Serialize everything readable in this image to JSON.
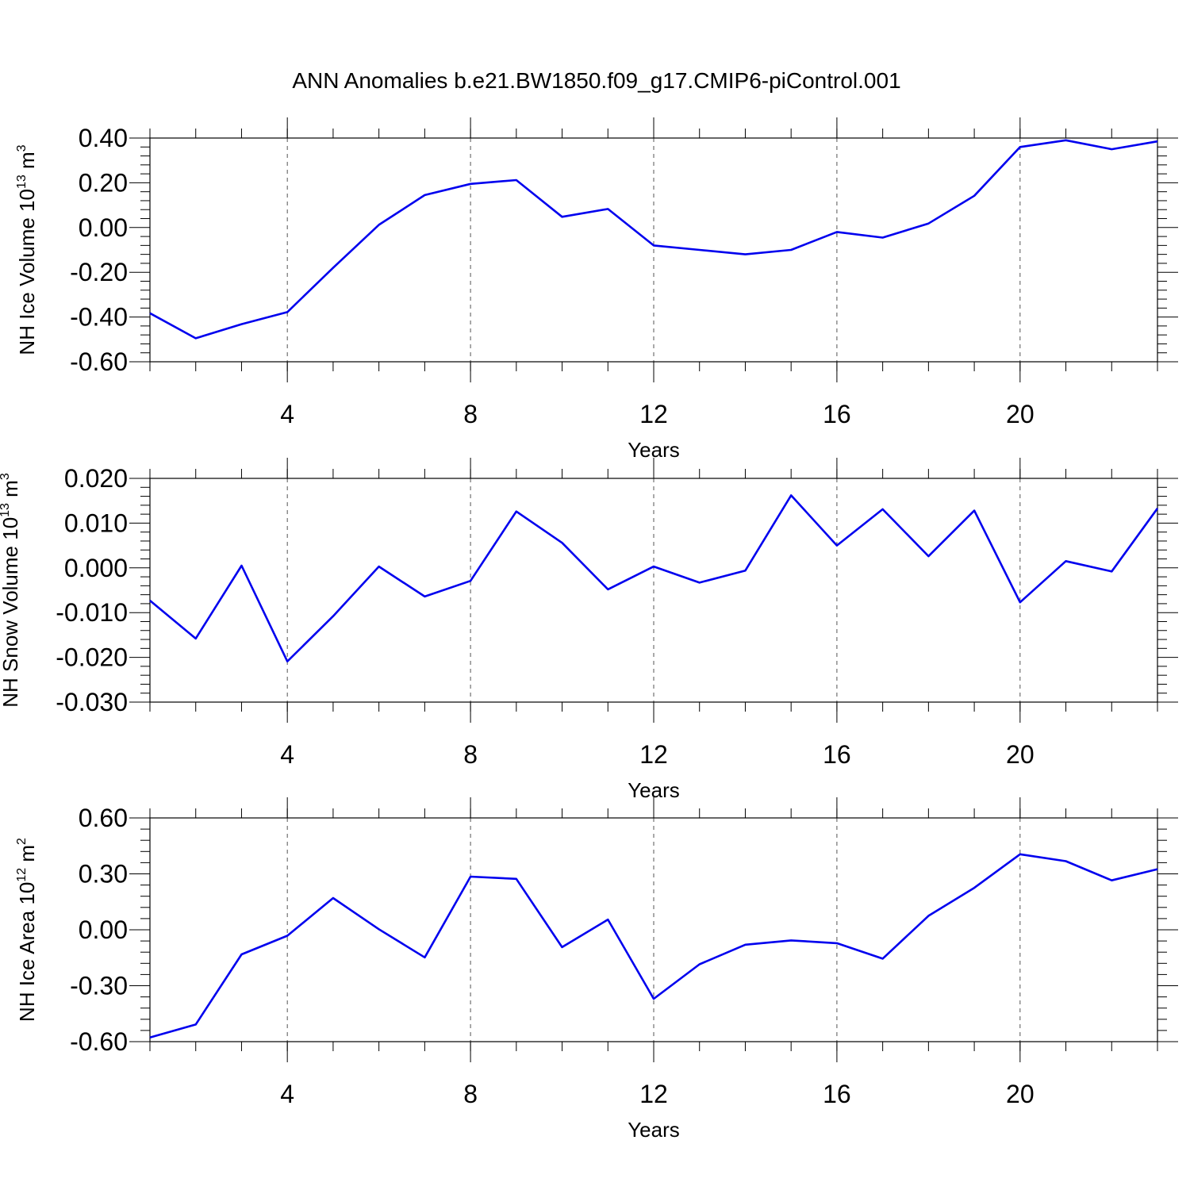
{
  "title": "ANN Anomalies b.e21.BW1850.f09_g17.CMIP6-piControl.001",
  "line_color": "#0000ee",
  "chart_data": [
    {
      "type": "line",
      "ylabel": "NH Ice Volume 10",
      "ylabel_exp": "13",
      "ylabel_unit": " m",
      "ylabel_unit_exp": "3",
      "xlabel": "Years",
      "xlim": [
        1,
        23
      ],
      "ylim": [
        -0.6,
        0.4
      ],
      "xticks": [
        4,
        8,
        12,
        16,
        20
      ],
      "xtick_labels": [
        "4",
        "8",
        "12",
        "16",
        "20"
      ],
      "yticks": [
        -0.6,
        -0.4,
        -0.2,
        0.0,
        0.2,
        0.4
      ],
      "ytick_labels": [
        "-0.60",
        "-0.40",
        "-0.20",
        "0.00",
        "0.20",
        "0.40"
      ],
      "grid": "vertical-dashed",
      "x": [
        1,
        2,
        3,
        4,
        5,
        6,
        7,
        8,
        9,
        10,
        11,
        12,
        13,
        14,
        15,
        16,
        17,
        18,
        19,
        20,
        21,
        22,
        23
      ],
      "series": [
        {
          "values": [
            -0.383,
            -0.495,
            -0.432,
            -0.378,
            -0.18,
            0.012,
            0.145,
            0.195,
            0.212,
            0.048,
            0.083,
            -0.08,
            -0.1,
            -0.12,
            -0.1,
            -0.02,
            -0.045,
            0.018,
            0.142,
            0.36,
            0.39,
            0.35,
            0.385
          ]
        }
      ]
    },
    {
      "type": "line",
      "ylabel": "NH Snow Volume 10",
      "ylabel_exp": "13",
      "ylabel_unit": " m",
      "ylabel_unit_exp": "3",
      "xlabel": "Years",
      "xlim": [
        1,
        23
      ],
      "ylim": [
        -0.03,
        0.02
      ],
      "xticks": [
        4,
        8,
        12,
        16,
        20
      ],
      "xtick_labels": [
        "4",
        "8",
        "12",
        "16",
        "20"
      ],
      "yticks": [
        -0.03,
        -0.02,
        -0.01,
        0.0,
        0.01,
        0.02
      ],
      "ytick_labels": [
        "-0.030",
        "-0.020",
        "-0.010",
        "0.000",
        "0.010",
        "0.020"
      ],
      "grid": "vertical-dashed",
      "x": [
        1,
        2,
        3,
        4,
        5,
        6,
        7,
        8,
        9,
        10,
        11,
        12,
        13,
        14,
        15,
        16,
        17,
        18,
        19,
        20,
        21,
        22,
        23
      ],
      "series": [
        {
          "values": [
            -0.0073,
            -0.0158,
            0.0005,
            -0.0209,
            -0.0108,
            0.0003,
            -0.0064,
            -0.0029,
            0.0126,
            0.0056,
            -0.0048,
            0.0003,
            -0.0033,
            -0.0006,
            0.0162,
            0.005,
            0.0131,
            0.0026,
            0.0128,
            -0.0077,
            0.0015,
            -0.0008,
            0.0133
          ]
        }
      ]
    },
    {
      "type": "line",
      "ylabel": "NH Ice Area 10",
      "ylabel_exp": "12",
      "ylabel_unit": " m",
      "ylabel_unit_exp": "2",
      "xlabel": "Years",
      "xlim": [
        1,
        23
      ],
      "ylim": [
        -0.6,
        0.6
      ],
      "xticks": [
        4,
        8,
        12,
        16,
        20
      ],
      "xtick_labels": [
        "4",
        "8",
        "12",
        "16",
        "20"
      ],
      "yticks": [
        -0.6,
        -0.3,
        0.0,
        0.3,
        0.6
      ],
      "ytick_labels": [
        "-0.60",
        "-0.30",
        "0.00",
        "0.30",
        "0.60"
      ],
      "grid": "vertical-dashed",
      "x": [
        1,
        2,
        3,
        4,
        5,
        6,
        7,
        8,
        9,
        10,
        11,
        12,
        13,
        14,
        15,
        16,
        17,
        18,
        19,
        20,
        21,
        22,
        23
      ],
      "series": [
        {
          "values": [
            -0.578,
            -0.508,
            -0.132,
            -0.032,
            0.17,
            0.003,
            -0.148,
            0.285,
            0.273,
            -0.093,
            0.055,
            -0.37,
            -0.185,
            -0.08,
            -0.057,
            -0.072,
            -0.155,
            0.075,
            0.225,
            0.405,
            0.368,
            0.265,
            0.325
          ]
        }
      ]
    }
  ]
}
